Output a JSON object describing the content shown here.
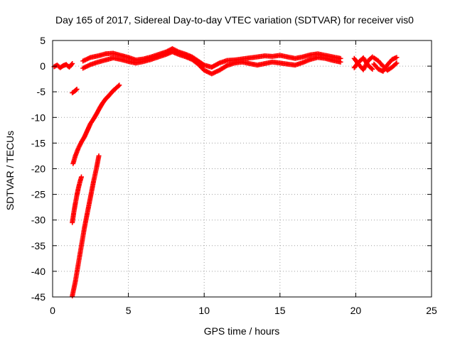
{
  "chart_data": {
    "type": "scatter",
    "title": "Day 165 of 2017, Sidereal Day-to-day VTEC variation (SDTVAR) for receiver vis0",
    "xlabel": "GPS time / hours",
    "ylabel": "SDTVAR / TECUs",
    "xlim": [
      0,
      25
    ],
    "ylim": [
      -45,
      5
    ],
    "xticks": [
      "0",
      "5",
      "10",
      "15",
      "20",
      "25"
    ],
    "yticks": [
      "5",
      "0",
      "-5",
      "-10",
      "-15",
      "-20",
      "-25",
      "-30",
      "-35",
      "-40",
      "-45"
    ],
    "grid": true,
    "legend": "none",
    "marker": "+",
    "color": "#ff0000",
    "series": [
      {
        "x": [
          0.1,
          0.3,
          0.5,
          0.7,
          0.9,
          1.1,
          1.3
        ],
        "y": [
          -0.1,
          0.2,
          -0.3,
          0.1,
          0.3,
          -0.2,
          0.5
        ]
      },
      {
        "x": [
          1.3,
          1.45,
          1.6
        ],
        "y": [
          -5.2,
          -4.9,
          -4.5
        ]
      },
      {
        "x": [
          1.35,
          1.5,
          1.7,
          1.9,
          2.1,
          2.3,
          2.5,
          2.7,
          2.9,
          3.1,
          3.3,
          3.5,
          3.7,
          3.9,
          4.1,
          4.3,
          4.4
        ],
        "y": [
          -19,
          -17.5,
          -16,
          -14.8,
          -13.8,
          -12.5,
          -11.2,
          -10.3,
          -9.3,
          -8.2,
          -7.2,
          -6.4,
          -5.8,
          -5.1,
          -4.5,
          -4.0,
          -3.7
        ]
      },
      {
        "x": [
          1.3,
          1.4,
          1.5,
          1.6,
          1.7,
          1.8,
          1.9
        ],
        "y": [
          -30.5,
          -28.5,
          -26.8,
          -25.2,
          -23.8,
          -22.6,
          -21.6
        ]
      },
      {
        "x": [
          1.3,
          1.5,
          1.7,
          1.9,
          2.1,
          2.3,
          2.5,
          2.7,
          2.9,
          3.05
        ],
        "y": [
          -44.8,
          -42,
          -38.5,
          -35,
          -31.5,
          -28.5,
          -25.5,
          -22.5,
          -19.8,
          -17.5
        ]
      },
      {
        "x": [
          2.0,
          2.5,
          3.0,
          3.5,
          4.0,
          4.5,
          5.0,
          5.5,
          6.0,
          6.5,
          7.0,
          7.5,
          7.9,
          8.3,
          8.8,
          9.2,
          9.6,
          10.0,
          10.5,
          11.0,
          11.5,
          12.0,
          12.5,
          13.0,
          13.5,
          14.0,
          14.5,
          15.0,
          15.5,
          16.0,
          16.5,
          17.0,
          17.5,
          18.0,
          18.5,
          19.0
        ],
        "y": [
          1.0,
          1.7,
          2.0,
          2.4,
          2.5,
          2.1,
          1.7,
          1.2,
          1.4,
          1.8,
          2.3,
          2.8,
          3.4,
          2.8,
          2.3,
          1.8,
          1.0,
          0.2,
          -0.2,
          0.6,
          1.1,
          1.2,
          1.4,
          1.6,
          1.8,
          2.0,
          1.9,
          2.1,
          1.8,
          1.5,
          1.8,
          2.2,
          2.4,
          2.1,
          1.8,
          1.5
        ]
      },
      {
        "x": [
          2.0,
          2.5,
          3.0,
          3.5,
          4.0,
          4.5,
          5.0,
          5.5,
          6.0,
          6.5,
          7.0,
          7.5,
          7.9,
          8.3,
          8.8,
          9.2,
          9.6,
          10.0,
          10.5,
          11.0,
          11.5,
          12.0,
          12.5,
          13.0,
          13.5,
          14.0,
          14.5,
          15.0,
          15.5,
          16.0,
          16.5,
          17.0,
          17.5,
          18.0,
          18.5,
          19.0
        ],
        "y": [
          -0.4,
          0.3,
          0.8,
          1.2,
          1.6,
          1.3,
          0.9,
          0.6,
          0.9,
          1.3,
          1.8,
          2.3,
          2.8,
          2.3,
          1.8,
          1.3,
          0.4,
          -0.8,
          -1.5,
          -0.8,
          0.1,
          0.6,
          0.8,
          0.5,
          0.2,
          0.5,
          0.8,
          0.6,
          0.4,
          0.2,
          0.7,
          1.3,
          1.7,
          1.5,
          1.1,
          0.8
        ]
      },
      {
        "x": [
          19.9,
          20.2,
          20.5,
          20.8,
          21.1
        ],
        "y": [
          -0.3,
          0.8,
          1.6,
          0.2,
          -0.6
        ]
      },
      {
        "x": [
          19.9,
          20.2,
          20.5,
          20.8,
          21.1
        ],
        "y": [
          1.5,
          0.3,
          -0.7,
          1.0,
          1.8
        ]
      },
      {
        "x": [
          21.2,
          21.5,
          21.8,
          22.1,
          22.4,
          22.7
        ],
        "y": [
          0.4,
          -0.6,
          -1.0,
          0.3,
          1.3,
          1.7
        ]
      },
      {
        "x": [
          21.2,
          21.5,
          21.8,
          22.1,
          22.4,
          22.7
        ],
        "y": [
          1.6,
          1.0,
          0.0,
          -0.8,
          -0.2,
          0.6
        ]
      }
    ]
  }
}
